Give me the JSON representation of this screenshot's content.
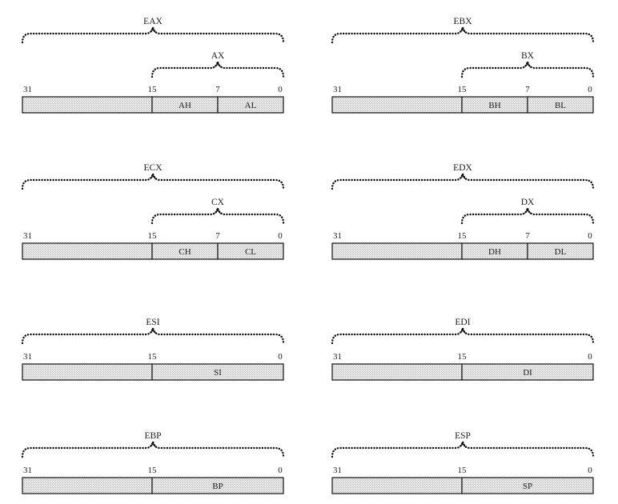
{
  "colors": {
    "ink": "#111111",
    "hatch_bg": "#eeeeee",
    "hatch_dot": "#9a9a9a",
    "background": "#ffffff"
  },
  "registers": [
    {
      "name": "EAX",
      "sub_name": "AX",
      "bits": [
        "31",
        "15",
        "7",
        "0"
      ],
      "cells": [
        {
          "label": "",
          "from_bit": 31,
          "to_bit": 16
        },
        {
          "label": "AH",
          "from_bit": 15,
          "to_bit": 8
        },
        {
          "label": "AL",
          "from_bit": 7,
          "to_bit": 0
        }
      ]
    },
    {
      "name": "EBX",
      "sub_name": "BX",
      "bits": [
        "31",
        "15",
        "7",
        "0"
      ],
      "cells": [
        {
          "label": "",
          "from_bit": 31,
          "to_bit": 16
        },
        {
          "label": "BH",
          "from_bit": 15,
          "to_bit": 8
        },
        {
          "label": "BL",
          "from_bit": 7,
          "to_bit": 0
        }
      ]
    },
    {
      "name": "ECX",
      "sub_name": "CX",
      "bits": [
        "31",
        "15",
        "7",
        "0"
      ],
      "cells": [
        {
          "label": "",
          "from_bit": 31,
          "to_bit": 16
        },
        {
          "label": "CH",
          "from_bit": 15,
          "to_bit": 8
        },
        {
          "label": "CL",
          "from_bit": 7,
          "to_bit": 0
        }
      ]
    },
    {
      "name": "EDX",
      "sub_name": "DX",
      "bits": [
        "31",
        "15",
        "7",
        "0"
      ],
      "cells": [
        {
          "label": "",
          "from_bit": 31,
          "to_bit": 16
        },
        {
          "label": "DH",
          "from_bit": 15,
          "to_bit": 8
        },
        {
          "label": "DL",
          "from_bit": 7,
          "to_bit": 0
        }
      ]
    },
    {
      "name": "ESI",
      "sub_name": "",
      "bits": [
        "31",
        "15",
        "0"
      ],
      "cells": [
        {
          "label": "",
          "from_bit": 31,
          "to_bit": 16
        },
        {
          "label": "SI",
          "from_bit": 15,
          "to_bit": 0
        }
      ]
    },
    {
      "name": "EDI",
      "sub_name": "",
      "bits": [
        "31",
        "15",
        "0"
      ],
      "cells": [
        {
          "label": "",
          "from_bit": 31,
          "to_bit": 16
        },
        {
          "label": "DI",
          "from_bit": 15,
          "to_bit": 0
        }
      ]
    },
    {
      "name": "EBP",
      "sub_name": "",
      "bits": [
        "31",
        "15",
        "0"
      ],
      "cells": [
        {
          "label": "",
          "from_bit": 31,
          "to_bit": 16
        },
        {
          "label": "BP",
          "from_bit": 15,
          "to_bit": 0
        }
      ]
    },
    {
      "name": "ESP",
      "sub_name": "",
      "bits": [
        "31",
        "15",
        "0"
      ],
      "cells": [
        {
          "label": "",
          "from_bit": 31,
          "to_bit": 16
        },
        {
          "label": "SP",
          "from_bit": 15,
          "to_bit": 0
        }
      ]
    }
  ]
}
